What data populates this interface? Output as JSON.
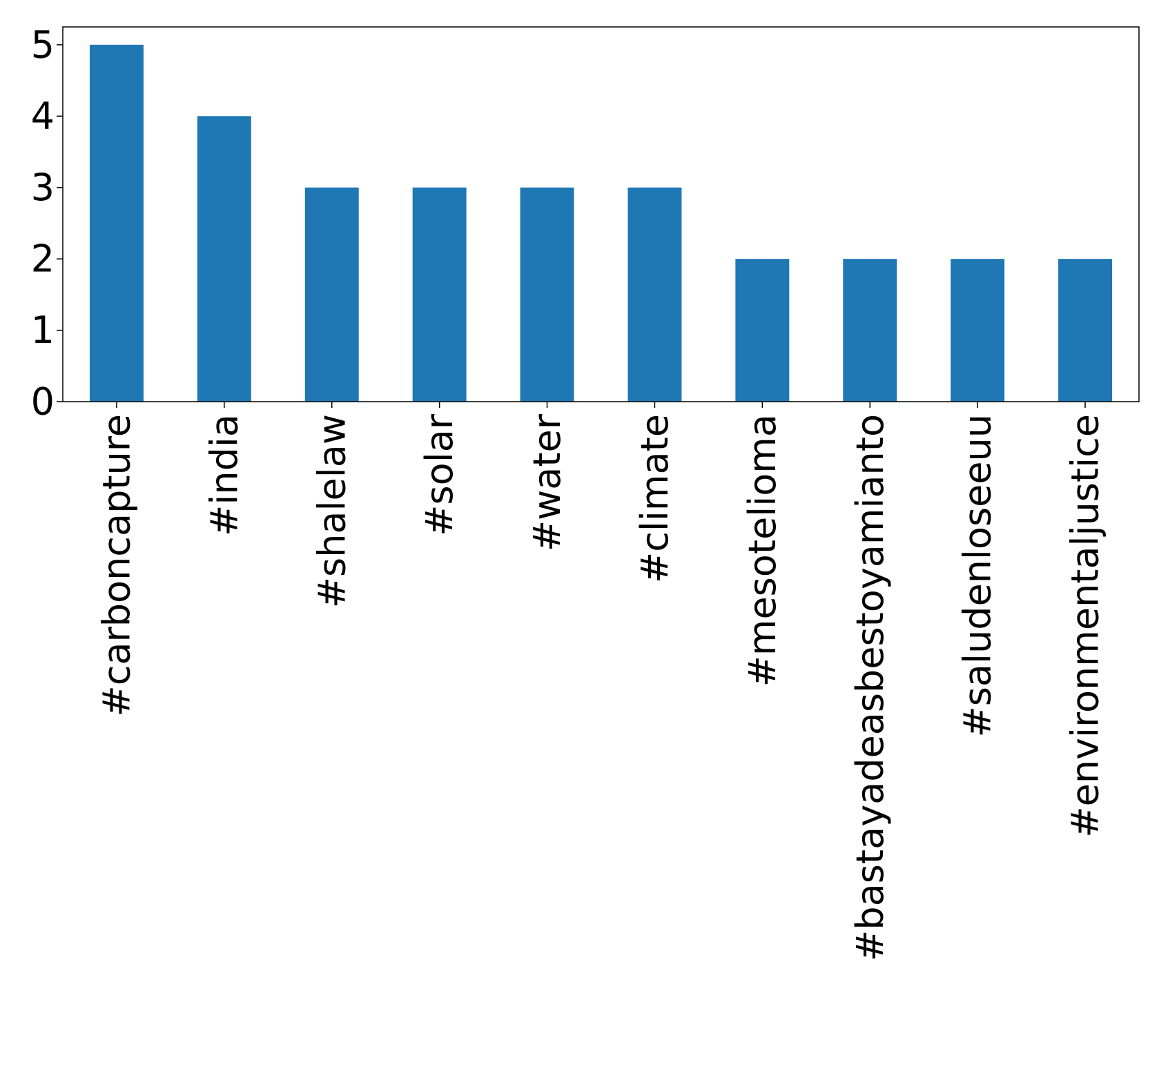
{
  "chart_data": {
    "type": "bar",
    "title": "",
    "xlabel": "",
    "ylabel": "",
    "categories": [
      "#carboncapture",
      "#india",
      "#shalelaw",
      "#solar",
      "#water",
      "#climate",
      "#mesotelioma",
      "#bastayadeasbestoyamianto",
      "#saludenloseeuu",
      "#environmentaljustice"
    ],
    "values": [
      5,
      4,
      3,
      3,
      3,
      3,
      2,
      2,
      2,
      2
    ],
    "ylim": [
      0,
      5.25
    ],
    "yticks": [
      "0",
      "1",
      "2",
      "3",
      "4",
      "5"
    ],
    "bar_color": "#1f77b4",
    "grid": false,
    "legend": "none"
  }
}
